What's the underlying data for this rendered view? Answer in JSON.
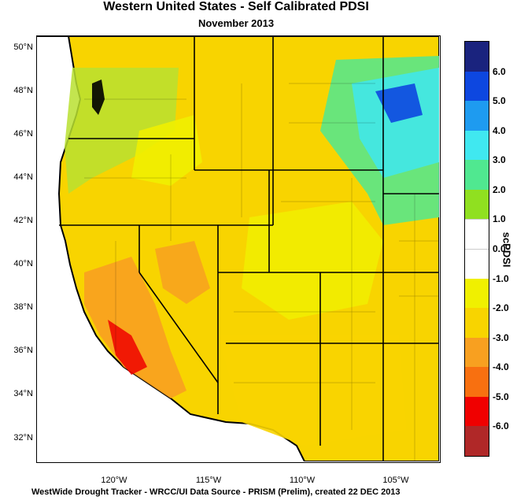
{
  "title": "Western United States - Self Calibrated PDSI",
  "subtitle": "November 2013",
  "footer": "WestWide Drought Tracker - WRCC/UI  Data Source - PRISM (Prelim), created 22 DEC 2013",
  "lat_labels": [
    "50°N",
    "48°N",
    "46°N",
    "44°N",
    "42°N",
    "40°N",
    "38°N",
    "36°N",
    "34°N",
    "32°N"
  ],
  "lon_labels": [
    "120°W",
    "115°W",
    "110°W",
    "105°W"
  ],
  "legend": {
    "title": "scPDSI",
    "labels": [
      "6.0",
      "5.0",
      "4.0",
      "3.0",
      "2.0",
      "1.0",
      "0.0",
      "-1.0",
      "-2.0",
      "-3.0",
      "-4.0",
      "-5.0",
      "-6.0"
    ],
    "colors": [
      "#1a237e",
      "#0d47e0",
      "#1e9bf0",
      "#40e8f0",
      "#50e890",
      "#90e020",
      "#ffffff",
      "#ffffff",
      "#f0f000",
      "#f8d400",
      "#f8a020",
      "#f87010",
      "#f00000",
      "#b02828"
    ]
  },
  "map": {
    "type": "heatmap",
    "lat_range": [
      31,
      50.6
    ],
    "lon_range": [
      -124.2,
      -102.8
    ],
    "colors": {
      "ocean": "#ffffff",
      "land_dry": "#f8d400",
      "land_moderate": "#f0f000",
      "land_severe": "#f8a020",
      "land_extreme": "#f00000",
      "land_wet": "#90e020",
      "land_verywet": "#40e8f0",
      "land_extremewet": "#0d47e0"
    }
  }
}
